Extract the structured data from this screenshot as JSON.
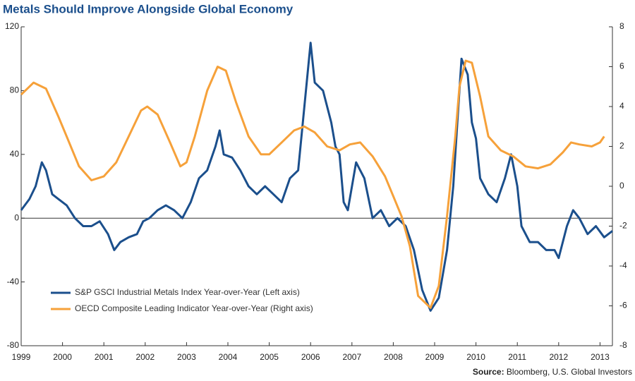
{
  "chart_data": {
    "type": "line",
    "title": "Metals Should Improve Alongside Global Economy",
    "source_label": "Source:",
    "source": "Bloomberg, U.S. Global Investors",
    "xlim": [
      1999,
      2013.3
    ],
    "xticks": [
      1999,
      2000,
      2001,
      2002,
      2003,
      2004,
      2005,
      2006,
      2007,
      2008,
      2009,
      2010,
      2011,
      2012,
      2013
    ],
    "ylim": [
      -80,
      120
    ],
    "yticks": [
      -80,
      -40,
      0,
      40,
      80,
      120
    ],
    "y2lim": [
      -8,
      8
    ],
    "y2ticks": [
      -8,
      -6,
      -4,
      -2,
      0,
      2,
      4,
      6,
      8
    ],
    "legend": "lower left",
    "series": [
      {
        "name": "S&P GSCI Industrial Metals Index Year-over-Year (Left axis)",
        "color": "#1b4f8c",
        "axis": "y",
        "x": [
          1999.0,
          1999.2,
          1999.35,
          1999.5,
          1999.6,
          1999.75,
          1999.9,
          2000.1,
          2000.3,
          2000.5,
          2000.7,
          2000.9,
          2001.1,
          2001.25,
          2001.4,
          2001.6,
          2001.8,
          2001.95,
          2002.1,
          2002.3,
          2002.5,
          2002.7,
          2002.9,
          2003.1,
          2003.3,
          2003.5,
          2003.7,
          2003.8,
          2003.9,
          2004.1,
          2004.3,
          2004.5,
          2004.7,
          2004.9,
          2005.1,
          2005.3,
          2005.5,
          2005.7,
          2005.85,
          2006.0,
          2006.1,
          2006.3,
          2006.5,
          2006.6,
          2006.7,
          2006.8,
          2006.9,
          2007.1,
          2007.3,
          2007.5,
          2007.7,
          2007.9,
          2008.1,
          2008.3,
          2008.5,
          2008.7,
          2008.9,
          2009.1,
          2009.3,
          2009.45,
          2009.55,
          2009.65,
          2009.8,
          2009.9,
          2010.0,
          2010.1,
          2010.3,
          2010.5,
          2010.7,
          2010.85,
          2011.0,
          2011.1,
          2011.3,
          2011.5,
          2011.7,
          2011.9,
          2012.0,
          2012.2,
          2012.35,
          2012.5,
          2012.7,
          2012.9,
          2013.1,
          2013.3
        ],
        "values": [
          5,
          12,
          20,
          35,
          30,
          15,
          12,
          8,
          0,
          -5,
          -5,
          -2,
          -10,
          -20,
          -15,
          -12,
          -10,
          -2,
          0,
          5,
          8,
          5,
          0,
          10,
          25,
          30,
          45,
          55,
          40,
          38,
          30,
          20,
          15,
          20,
          15,
          10,
          25,
          30,
          70,
          110,
          85,
          80,
          60,
          45,
          40,
          10,
          5,
          35,
          25,
          0,
          5,
          -5,
          0,
          -5,
          -20,
          -45,
          -58,
          -50,
          -20,
          20,
          60,
          100,
          90,
          60,
          50,
          25,
          15,
          10,
          25,
          40,
          20,
          -5,
          -15,
          -15,
          -20,
          -20,
          -25,
          -5,
          5,
          0,
          -10,
          -5,
          -12,
          -8
        ]
      },
      {
        "name": "OECD Composite Leading Indicator Year-over-Year (Right axis)",
        "color": "#f6a13a",
        "axis": "y2",
        "x": [
          1999.0,
          1999.3,
          1999.6,
          1999.9,
          2000.1,
          2000.4,
          2000.7,
          2001.0,
          2001.3,
          2001.6,
          2001.9,
          2002.05,
          2002.3,
          2002.6,
          2002.85,
          2003.0,
          2003.2,
          2003.5,
          2003.75,
          2003.95,
          2004.2,
          2004.5,
          2004.8,
          2005.0,
          2005.3,
          2005.6,
          2005.85,
          2006.1,
          2006.4,
          2006.7,
          2006.95,
          2007.2,
          2007.5,
          2007.8,
          2008.0,
          2008.2,
          2008.4,
          2008.6,
          2008.9,
          2009.1,
          2009.3,
          2009.5,
          2009.6,
          2009.75,
          2009.9,
          2010.1,
          2010.3,
          2010.6,
          2010.9,
          2011.2,
          2011.5,
          2011.8,
          2012.1,
          2012.3,
          2012.5,
          2012.8,
          2013.0,
          2013.1
        ],
        "values": [
          4.6,
          5.2,
          4.9,
          3.5,
          2.5,
          1.0,
          0.3,
          0.5,
          1.2,
          2.5,
          3.8,
          4.0,
          3.6,
          2.2,
          1.0,
          1.2,
          2.5,
          4.8,
          6.0,
          5.8,
          4.2,
          2.5,
          1.6,
          1.6,
          2.2,
          2.8,
          3.0,
          2.7,
          2.0,
          1.8,
          2.1,
          2.2,
          1.5,
          0.5,
          -0.5,
          -1.5,
          -3.0,
          -5.5,
          -6.1,
          -5.0,
          -1.5,
          2.5,
          5.0,
          6.3,
          6.2,
          4.5,
          2.5,
          1.8,
          1.5,
          1.0,
          0.9,
          1.1,
          1.7,
          2.2,
          2.1,
          2.0,
          2.2,
          2.5
        ]
      }
    ]
  }
}
